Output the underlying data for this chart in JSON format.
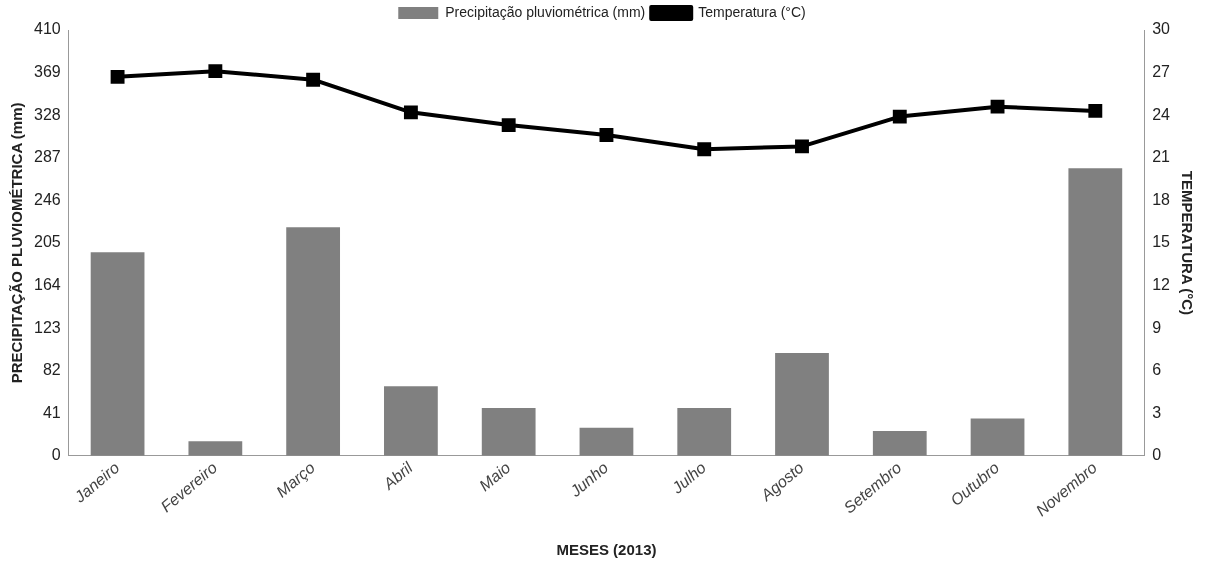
{
  "chart_data": {
    "type": "bar",
    "xlabel": "MESES (2013)",
    "ylabel": "PRECIPITAÇÃO PLUVIOMÉTRICA (mm)",
    "y2label": "TEMPERATURA (°C)",
    "categories": [
      "Janeiro",
      "Fevereiro",
      "Março",
      "Abril",
      "Maio",
      "Junho",
      "Julho",
      "Agosto",
      "Setembro",
      "Outubro",
      "Novembro"
    ],
    "series": [
      {
        "name": "Precipitação pluviométrica (mm)",
        "color": "#808080",
        "values": [
          196,
          14,
          220,
          67,
          46,
          27,
          46,
          99,
          24,
          36,
          277
        ]
      },
      {
        "name": "Temperatura (°C)",
        "type": "line",
        "axis": "y2",
        "color": "#000000",
        "values": [
          26.7,
          27.1,
          26.5,
          24.2,
          23.3,
          22.6,
          21.6,
          21.8,
          23.9,
          24.6,
          24.3
        ]
      }
    ],
    "ylim": [
      0,
      410
    ],
    "yticks": [
      0,
      41,
      82,
      123,
      164,
      205,
      246,
      287,
      328,
      369,
      410
    ],
    "y2lim": [
      0,
      30
    ],
    "y2ticks": [
      0,
      3,
      6,
      9,
      12,
      15,
      18,
      21,
      24,
      27,
      30
    ],
    "grid": false,
    "legend": "top",
    "marker": "square",
    "line_style": "solid"
  }
}
